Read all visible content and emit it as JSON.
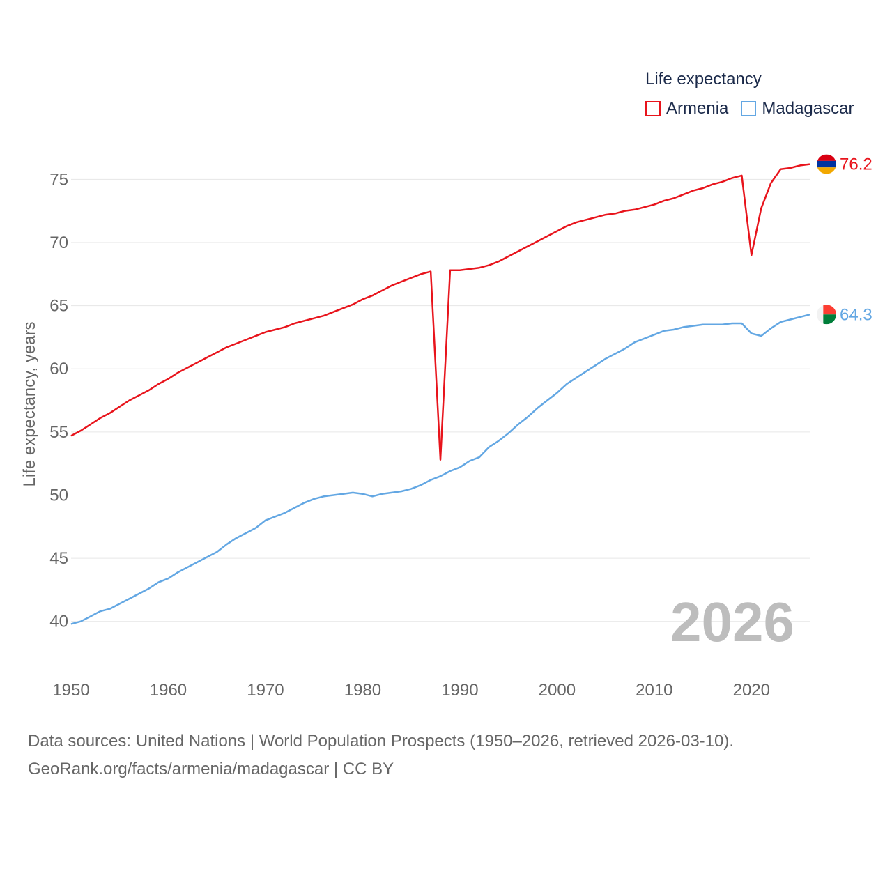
{
  "legend": {
    "title": "Life expectancy",
    "items": [
      {
        "label": "Armenia",
        "color": "#e8141c"
      },
      {
        "label": "Madagascar",
        "color": "#63a7e3"
      }
    ]
  },
  "sources": {
    "line1": "Data sources: United Nations | World Population Prospects (1950–2026, retrieved 2026-03-10).",
    "line2": "GeoRank.org/facts/armenia/madagascar | CC BY"
  },
  "chart_data": {
    "type": "line",
    "title": "Life expectancy",
    "xlabel": "",
    "ylabel": "Life expectancy, years",
    "xlim": [
      1950,
      2026
    ],
    "ylim": [
      38,
      77.5
    ],
    "xticks": [
      1950,
      1960,
      1970,
      1980,
      1990,
      2000,
      2010,
      2020
    ],
    "yticks": [
      40,
      45,
      50,
      55,
      60,
      65,
      70,
      75
    ],
    "grid": true,
    "year_watermark": "2026",
    "series": [
      {
        "name": "Armenia",
        "color": "#e8141c",
        "end_label": "76.2",
        "flag": "armenia",
        "points": [
          [
            1950,
            54.7
          ],
          [
            1951,
            55.1
          ],
          [
            1952,
            55.6
          ],
          [
            1953,
            56.1
          ],
          [
            1954,
            56.5
          ],
          [
            1955,
            57.0
          ],
          [
            1956,
            57.5
          ],
          [
            1957,
            57.9
          ],
          [
            1958,
            58.3
          ],
          [
            1959,
            58.8
          ],
          [
            1960,
            59.2
          ],
          [
            1961,
            59.7
          ],
          [
            1962,
            60.1
          ],
          [
            1963,
            60.5
          ],
          [
            1964,
            60.9
          ],
          [
            1965,
            61.3
          ],
          [
            1966,
            61.7
          ],
          [
            1967,
            62.0
          ],
          [
            1968,
            62.3
          ],
          [
            1969,
            62.6
          ],
          [
            1970,
            62.9
          ],
          [
            1971,
            63.1
          ],
          [
            1972,
            63.3
          ],
          [
            1973,
            63.6
          ],
          [
            1974,
            63.8
          ],
          [
            1975,
            64.0
          ],
          [
            1976,
            64.2
          ],
          [
            1977,
            64.5
          ],
          [
            1978,
            64.8
          ],
          [
            1979,
            65.1
          ],
          [
            1980,
            65.5
          ],
          [
            1981,
            65.8
          ],
          [
            1982,
            66.2
          ],
          [
            1983,
            66.6
          ],
          [
            1984,
            66.9
          ],
          [
            1985,
            67.2
          ],
          [
            1986,
            67.5
          ],
          [
            1987,
            67.7
          ],
          [
            1988,
            52.8
          ],
          [
            1989,
            67.8
          ],
          [
            1990,
            67.8
          ],
          [
            1991,
            67.9
          ],
          [
            1992,
            68.0
          ],
          [
            1993,
            68.2
          ],
          [
            1994,
            68.5
          ],
          [
            1995,
            68.9
          ],
          [
            1996,
            69.3
          ],
          [
            1997,
            69.7
          ],
          [
            1998,
            70.1
          ],
          [
            1999,
            70.5
          ],
          [
            2000,
            70.9
          ],
          [
            2001,
            71.3
          ],
          [
            2002,
            71.6
          ],
          [
            2003,
            71.8
          ],
          [
            2004,
            72.0
          ],
          [
            2005,
            72.2
          ],
          [
            2006,
            72.3
          ],
          [
            2007,
            72.5
          ],
          [
            2008,
            72.6
          ],
          [
            2009,
            72.8
          ],
          [
            2010,
            73.0
          ],
          [
            2011,
            73.3
          ],
          [
            2012,
            73.5
          ],
          [
            2013,
            73.8
          ],
          [
            2014,
            74.1
          ],
          [
            2015,
            74.3
          ],
          [
            2016,
            74.6
          ],
          [
            2017,
            74.8
          ],
          [
            2018,
            75.1
          ],
          [
            2019,
            75.3
          ],
          [
            2020,
            69.0
          ],
          [
            2021,
            72.7
          ],
          [
            2022,
            74.7
          ],
          [
            2023,
            75.8
          ],
          [
            2024,
            75.9
          ],
          [
            2025,
            76.1
          ],
          [
            2026,
            76.2
          ]
        ]
      },
      {
        "name": "Madagascar",
        "color": "#63a7e3",
        "end_label": "64.3",
        "flag": "madagascar",
        "points": [
          [
            1950,
            39.8
          ],
          [
            1951,
            40.0
          ],
          [
            1952,
            40.4
          ],
          [
            1953,
            40.8
          ],
          [
            1954,
            41.0
          ],
          [
            1955,
            41.4
          ],
          [
            1956,
            41.8
          ],
          [
            1957,
            42.2
          ],
          [
            1958,
            42.6
          ],
          [
            1959,
            43.1
          ],
          [
            1960,
            43.4
          ],
          [
            1961,
            43.9
          ],
          [
            1962,
            44.3
          ],
          [
            1963,
            44.7
          ],
          [
            1964,
            45.1
          ],
          [
            1965,
            45.5
          ],
          [
            1966,
            46.1
          ],
          [
            1967,
            46.6
          ],
          [
            1968,
            47.0
          ],
          [
            1969,
            47.4
          ],
          [
            1970,
            48.0
          ],
          [
            1971,
            48.3
          ],
          [
            1972,
            48.6
          ],
          [
            1973,
            49.0
          ],
          [
            1974,
            49.4
          ],
          [
            1975,
            49.7
          ],
          [
            1976,
            49.9
          ],
          [
            1977,
            50.0
          ],
          [
            1978,
            50.1
          ],
          [
            1979,
            50.2
          ],
          [
            1980,
            50.1
          ],
          [
            1981,
            49.9
          ],
          [
            1982,
            50.1
          ],
          [
            1983,
            50.2
          ],
          [
            1984,
            50.3
          ],
          [
            1985,
            50.5
          ],
          [
            1986,
            50.8
          ],
          [
            1987,
            51.2
          ],
          [
            1988,
            51.5
          ],
          [
            1989,
            51.9
          ],
          [
            1990,
            52.2
          ],
          [
            1991,
            52.7
          ],
          [
            1992,
            53.0
          ],
          [
            1993,
            53.8
          ],
          [
            1994,
            54.3
          ],
          [
            1995,
            54.9
          ],
          [
            1996,
            55.6
          ],
          [
            1997,
            56.2
          ],
          [
            1998,
            56.9
          ],
          [
            1999,
            57.5
          ],
          [
            2000,
            58.1
          ],
          [
            2001,
            58.8
          ],
          [
            2002,
            59.3
          ],
          [
            2003,
            59.8
          ],
          [
            2004,
            60.3
          ],
          [
            2005,
            60.8
          ],
          [
            2006,
            61.2
          ],
          [
            2007,
            61.6
          ],
          [
            2008,
            62.1
          ],
          [
            2009,
            62.4
          ],
          [
            2010,
            62.7
          ],
          [
            2011,
            63.0
          ],
          [
            2012,
            63.1
          ],
          [
            2013,
            63.3
          ],
          [
            2014,
            63.4
          ],
          [
            2015,
            63.5
          ],
          [
            2016,
            63.5
          ],
          [
            2017,
            63.5
          ],
          [
            2018,
            63.6
          ],
          [
            2019,
            63.6
          ],
          [
            2020,
            62.8
          ],
          [
            2021,
            62.6
          ],
          [
            2022,
            63.2
          ],
          [
            2023,
            63.7
          ],
          [
            2024,
            63.9
          ],
          [
            2025,
            64.1
          ],
          [
            2026,
            64.3
          ]
        ]
      }
    ]
  }
}
